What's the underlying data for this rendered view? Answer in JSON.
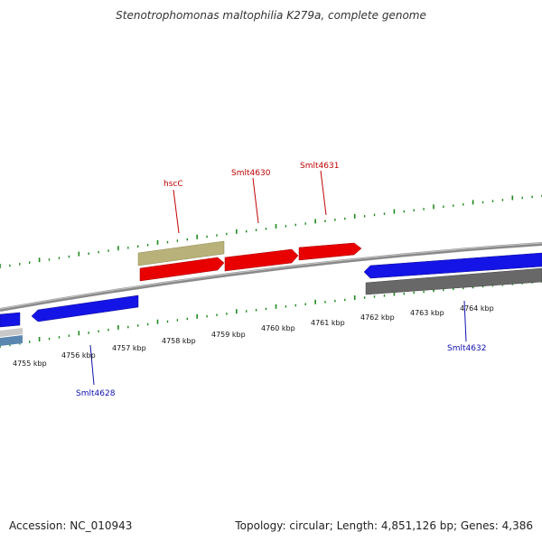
{
  "title": "Stenotrophomonas maltophilia K279a, complete genome",
  "footer": {
    "accession": "Accession: NC_010943",
    "summary": "Topology: circular; Length: 4,851,126 bp; Genes: 4,386"
  },
  "colors": {
    "forward_gene": "#e80000",
    "reverse_gene": "#1414e6",
    "forward_other": "#b8b27a",
    "reverse_other": "#686868",
    "backbone": "#8a8a8a",
    "tick": "#1e8a1e",
    "forward_label": "#c00000",
    "reverse_label": "#1010b0"
  },
  "scale_labels": [
    "4755 kbp",
    "4756 kbp",
    "4757 kbp",
    "4758 kbp",
    "4759 kbp",
    "4760 kbp",
    "4761 kbp",
    "4762 kbp",
    "4763 kbp",
    "4764 kbp"
  ],
  "gene_labels": {
    "hscC": "hscC",
    "smlt4630": "Smlt4630",
    "smlt4631": "Smlt4631",
    "smlt4628": "Smlt4628",
    "smlt4632": "Smlt4632"
  }
}
